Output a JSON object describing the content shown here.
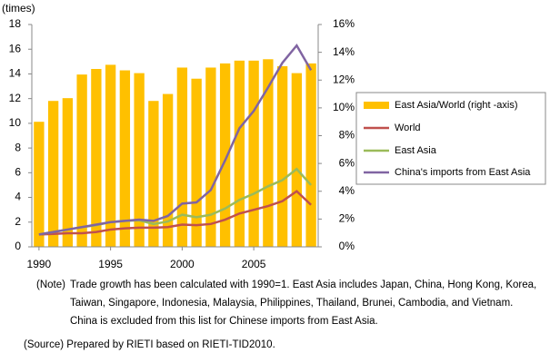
{
  "chart_data": {
    "type": "bar-line",
    "y_axis_label": "(times)",
    "x": [
      1990,
      1991,
      1992,
      1993,
      1994,
      1995,
      1996,
      1997,
      1998,
      1999,
      2000,
      2001,
      2002,
      2003,
      2004,
      2005,
      2006,
      2007,
      2008,
      2009
    ],
    "xlim": [
      1989.5,
      2009.5
    ],
    "xticks": [
      1990,
      1995,
      2000,
      2005
    ],
    "ylim": [
      0,
      18
    ],
    "yticks": [
      0,
      2,
      4,
      6,
      8,
      10,
      12,
      14,
      16,
      18
    ],
    "y2lim": [
      0,
      16
    ],
    "y2ticks": [
      {
        "value": 0,
        "label": "0%"
      },
      {
        "value": 2,
        "label": "2%"
      },
      {
        "value": 4,
        "label": "4%"
      },
      {
        "value": 6,
        "label": "6%"
      },
      {
        "value": 8,
        "label": "8%"
      },
      {
        "value": 10,
        "label": "10%"
      },
      {
        "value": 12,
        "label": "12%"
      },
      {
        "value": 14,
        "label": "14%"
      },
      {
        "value": 16,
        "label": "16%"
      }
    ],
    "grid": false,
    "legend": "right",
    "series": [
      {
        "name": "East Asia/World (right -axis)",
        "type": "bar",
        "axis": "y2",
        "color": "#ffc000",
        "values": [
          9.0,
          10.5,
          10.7,
          12.4,
          12.8,
          13.1,
          12.7,
          12.5,
          10.5,
          11.0,
          12.9,
          12.1,
          12.9,
          13.2,
          13.4,
          13.4,
          13.5,
          13.0,
          12.5,
          13.2
        ]
      },
      {
        "name": "World",
        "type": "line",
        "color": "#c0504d",
        "values": [
          1.0,
          1.05,
          1.1,
          1.1,
          1.2,
          1.4,
          1.5,
          1.55,
          1.55,
          1.6,
          1.8,
          1.75,
          1.85,
          2.2,
          2.7,
          3.0,
          3.3,
          3.7,
          4.5,
          3.4
        ]
      },
      {
        "name": "East Asia",
        "type": "line",
        "color": "#9bbb59",
        "values": [
          1.0,
          1.2,
          1.4,
          1.6,
          1.75,
          2.0,
          2.1,
          2.15,
          1.85,
          2.05,
          2.6,
          2.4,
          2.6,
          3.1,
          3.8,
          4.3,
          4.9,
          5.4,
          6.3,
          5.0
        ]
      },
      {
        "name": "China's imports from East Asia",
        "type": "line",
        "color": "#8064a2",
        "values": [
          1.0,
          1.2,
          1.4,
          1.6,
          1.8,
          2.0,
          2.1,
          2.2,
          2.1,
          2.5,
          3.5,
          3.6,
          4.6,
          7.0,
          9.6,
          11.0,
          12.9,
          14.9,
          16.3,
          14.3
        ]
      }
    ]
  },
  "notes": {
    "note_label": "(Note)",
    "note": "Trade growth has been calculated with 1990=1. East Asia includes Japan, China, Hong Kong, Korea, Taiwan, Singapore, Indonesia, Malaysia, Philippines, Thailand, Brunei, Cambodia, and Vietnam. China is excluded from this list for Chinese imports from East Asia.",
    "source": "(Source) Prepared by RIETI based on RIETI-TID2010."
  }
}
